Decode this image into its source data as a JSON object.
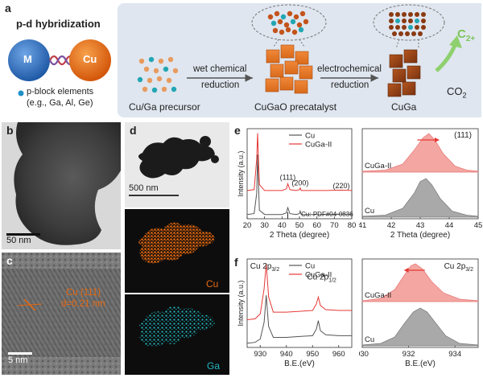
{
  "panel_a": {
    "letter": "a",
    "title": "p-d hybridization",
    "sphere_m": "M",
    "sphere_cu": "Cu",
    "legend_line1": "p-block elements",
    "legend_line2": "(e.g., Ga, Al, Ge)",
    "step1_top": "wet chemical",
    "step1_bottom": "reduction",
    "step2_top": "electrochemical",
    "step2_bottom": "reduction",
    "label_precursor": "Cu/Ga precursor",
    "label_precatalyst": "CuGaO precatalyst",
    "label_cuga": "CuGa",
    "product": "C",
    "product_sub": "2+",
    "reactant": "CO",
    "reactant_sub": "2",
    "colors": {
      "cu": "#e8690f",
      "m": "#2f72c4",
      "ga_dot": "#22a6b3",
      "arrow_green": "#8fd06e"
    }
  },
  "panel_b": {
    "letter": "b",
    "scale_bar": "50 nm"
  },
  "panel_c": {
    "letter": "c",
    "lattice_line1": "Cu (111)",
    "lattice_line2": "d=0.21 nm",
    "scale_bar": "5 nm"
  },
  "panel_d": {
    "letter": "d",
    "scale_bar": "500 nm",
    "map_cu": "Cu",
    "map_ga": "Ga"
  },
  "panel_e": {
    "letter": "e"
  },
  "panel_f": {
    "letter": "f"
  },
  "chart_data": [
    {
      "type": "line",
      "panel": "e-left",
      "xlabel": "2 Theta (degree)",
      "ylabel": "Intensity (a.u.)",
      "xlim": [
        20,
        80
      ],
      "xticks": [
        20,
        30,
        40,
        50,
        60,
        70,
        80
      ],
      "legend": [
        "Cu",
        "CuGa-II"
      ],
      "peak_labels": [
        "(111)",
        "(200)",
        "(220)"
      ],
      "reference_label": "Cu: PDF#04-0836",
      "series": [
        {
          "name": "Cu",
          "color": "#555555",
          "x": [
            20,
            24,
            25.5,
            26,
            27,
            30,
            35,
            40,
            42.5,
            43.3,
            44.5,
            48,
            50,
            50.4,
            51,
            55,
            65,
            74,
            80
          ],
          "y": [
            0.05,
            0.06,
            0.3,
            0.75,
            0.1,
            0.05,
            0.05,
            0.05,
            0.07,
            0.13,
            0.06,
            0.05,
            0.06,
            0.09,
            0.05,
            0.05,
            0.05,
            0.055,
            0.05
          ]
        },
        {
          "name": "CuGa-II",
          "color": "#e53935",
          "x": [
            20,
            24,
            25.5,
            26,
            27,
            30,
            35,
            40,
            42.5,
            43.3,
            44.5,
            48,
            50,
            50.4,
            51,
            55,
            65,
            74,
            80
          ],
          "y": [
            0.33,
            0.34,
            0.7,
            1.0,
            0.4,
            0.33,
            0.33,
            0.33,
            0.35,
            0.41,
            0.34,
            0.33,
            0.34,
            0.36,
            0.33,
            0.33,
            0.33,
            0.335,
            0.33
          ]
        }
      ]
    },
    {
      "type": "area",
      "panel": "e-right",
      "xlabel": "2 Theta (degree)",
      "xlim": [
        41,
        45
      ],
      "xticks": [
        41,
        42,
        43,
        44,
        45
      ],
      "annotation": "(111)",
      "series_labels": [
        "CuGa-II",
        "Cu"
      ],
      "series": [
        {
          "name": "CuGa-II",
          "color": "#f4a7a2",
          "x": [
            41,
            41.8,
            42.4,
            42.8,
            43.1,
            43.3,
            43.5,
            43.8,
            44.2,
            44.6,
            45
          ],
          "y": [
            0.02,
            0.05,
            0.2,
            0.55,
            0.85,
            0.95,
            0.8,
            0.45,
            0.15,
            0.05,
            0.02
          ]
        },
        {
          "name": "Cu",
          "color": "#a9a9a9",
          "x": [
            41,
            41.8,
            42.4,
            42.8,
            43.0,
            43.2,
            43.4,
            43.7,
            44.1,
            44.6,
            45
          ],
          "y": [
            0.02,
            0.05,
            0.22,
            0.6,
            0.88,
            0.95,
            0.8,
            0.45,
            0.15,
            0.05,
            0.02
          ]
        }
      ]
    },
    {
      "type": "line",
      "panel": "f-left",
      "xlabel": "B.E.(eV)",
      "ylabel": "Intensity (a.u.)",
      "xlim": [
        925,
        965
      ],
      "xticks": [
        930,
        940,
        950,
        960
      ],
      "legend": [
        "Cu",
        "CuGa-II"
      ],
      "peak_labels": [
        "Cu 2p3/2",
        "Cu 2p1/2"
      ],
      "series": [
        {
          "name": "Cu",
          "color": "#555555",
          "x": [
            925,
            928,
            930,
            931.5,
            932.3,
            933.2,
            935,
            940,
            945,
            950,
            951.5,
            952.2,
            953,
            955,
            960,
            965
          ],
          "y": [
            0.05,
            0.06,
            0.1,
            0.3,
            0.62,
            0.25,
            0.12,
            0.12,
            0.13,
            0.14,
            0.22,
            0.32,
            0.2,
            0.15,
            0.14,
            0.14
          ]
        },
        {
          "name": "CuGa-II",
          "color": "#e53935",
          "x": [
            925,
            928,
            930,
            931.5,
            932.3,
            933.2,
            935,
            940,
            945,
            950,
            951.5,
            952.2,
            953,
            955,
            960,
            965
          ],
          "y": [
            0.33,
            0.34,
            0.4,
            0.7,
            1.0,
            0.6,
            0.42,
            0.42,
            0.43,
            0.44,
            0.52,
            0.6,
            0.5,
            0.45,
            0.44,
            0.44
          ]
        }
      ]
    },
    {
      "type": "area",
      "panel": "f-right",
      "xlabel": "B.E.(eV)",
      "xlim": [
        930,
        935
      ],
      "xticks": [
        930,
        932,
        934
      ],
      "annotation": "Cu 2p3/2",
      "series_labels": [
        "CuGa-II",
        "Cu"
      ],
      "series": [
        {
          "name": "CuGa-II",
          "color": "#f4a7a2",
          "x": [
            930,
            930.8,
            931.4,
            931.8,
            932.1,
            932.3,
            932.6,
            933.0,
            933.5,
            934.2,
            935
          ],
          "y": [
            0.02,
            0.08,
            0.3,
            0.65,
            0.9,
            0.95,
            0.82,
            0.5,
            0.22,
            0.06,
            0.02
          ]
        },
        {
          "name": "Cu",
          "color": "#a9a9a9",
          "x": [
            930,
            930.8,
            931.4,
            931.8,
            932.2,
            932.5,
            932.8,
            933.2,
            933.6,
            934.2,
            935
          ],
          "y": [
            0.02,
            0.06,
            0.22,
            0.55,
            0.85,
            0.95,
            0.85,
            0.55,
            0.25,
            0.06,
            0.02
          ]
        }
      ]
    }
  ]
}
